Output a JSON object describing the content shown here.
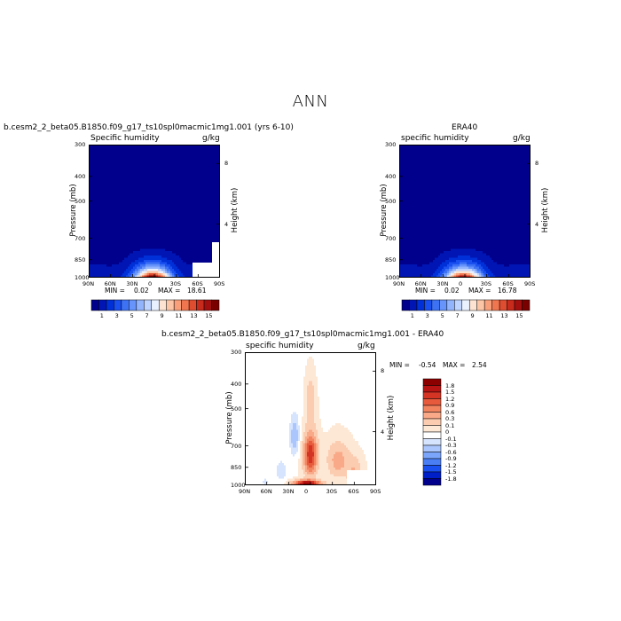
{
  "figure": {
    "title": "ANN",
    "colors": {
      "abs_levels": [
        "#00008c",
        "#0015b4",
        "#0030d8",
        "#1a4ff0",
        "#3d72f5",
        "#6694fa",
        "#92b4fc",
        "#bfd4fe",
        "#e9f1ff",
        "#fde4d2",
        "#fcc5a5",
        "#f9a07a",
        "#f0764f",
        "#df4d30",
        "#c82a1c",
        "#a30f0f",
        "#7a0000"
      ],
      "diff_levels": [
        "#00008c",
        "#001fc8",
        "#1a4ff0",
        "#4a7ef5",
        "#7aa5fa",
        "#aac6fc",
        "#d6e4fe",
        "#ffffff",
        "#fde8d6",
        "#fcccb0",
        "#f9a888",
        "#f28460",
        "#e85a3c",
        "#d33424",
        "#b81414",
        "#8c0000"
      ]
    }
  },
  "chart_data": [
    {
      "type": "heatmap",
      "title": "b.cesm2_2_beta05.B1850.f09_g17_ts10spl0macmic1mg1.001 (yrs 6-10)",
      "subtitle_left": "Specific humidity",
      "subtitle_right": "g/kg",
      "xlabel": "",
      "ylabel": "Pressure (mb)",
      "ylabel_right": "Height (km)",
      "x_ticks": [
        "90N",
        "60N",
        "30N",
        "0",
        "30S",
        "60S",
        "90S"
      ],
      "y_ticks": [
        "300",
        "400",
        "500",
        "700",
        "850",
        "1000"
      ],
      "y_ticks_right": [
        "8",
        "4"
      ],
      "min_label": "MIN =",
      "min": "0.02",
      "max_label": "MAX =",
      "max": "18.61",
      "colorbar_labels": [
        "1",
        "3",
        "5",
        "7",
        "9",
        "11",
        "13",
        "15"
      ]
    },
    {
      "type": "heatmap",
      "title": "ERA40",
      "subtitle_left": "specific humidity",
      "subtitle_right": "g/kg",
      "xlabel": "",
      "ylabel": "Pressure (mb)",
      "ylabel_right": "Height (km)",
      "x_ticks": [
        "90N",
        "60N",
        "30N",
        "0",
        "30S",
        "60S",
        "90S"
      ],
      "y_ticks": [
        "300",
        "400",
        "500",
        "700",
        "850",
        "1000"
      ],
      "y_ticks_right": [
        "8",
        "4"
      ],
      "min_label": "MIN =",
      "min": "0.02",
      "max_label": "MAX =",
      "max": "16.78",
      "colorbar_labels": [
        "1",
        "3",
        "5",
        "7",
        "9",
        "11",
        "13",
        "15"
      ]
    },
    {
      "type": "heatmap",
      "title": "b.cesm2_2_beta05.B1850.f09_g17_ts10spl0macmic1mg1.001 - ERA40",
      "subtitle_left": "specific humidity",
      "subtitle_right": "g/kg",
      "xlabel": "",
      "ylabel": "Pressure (mb)",
      "ylabel_right": "Height (km)",
      "x_ticks": [
        "90N",
        "60N",
        "30N",
        "0",
        "30S",
        "60S",
        "90S"
      ],
      "y_ticks": [
        "300",
        "400",
        "500",
        "700",
        "850",
        "1000"
      ],
      "y_ticks_right": [
        "8",
        "4"
      ],
      "min_label": "MIN =",
      "min": "-0.54",
      "max_label": "MAX =",
      "max": "2.54",
      "colorbar_labels": [
        "1.8",
        "1.5",
        "1.2",
        "0.9",
        "0.6",
        "0.3",
        "0.1",
        "0",
        "-0.1",
        "-0.3",
        "-0.6",
        "-0.9",
        "-1.2",
        "-1.5",
        "-1.8"
      ]
    }
  ]
}
